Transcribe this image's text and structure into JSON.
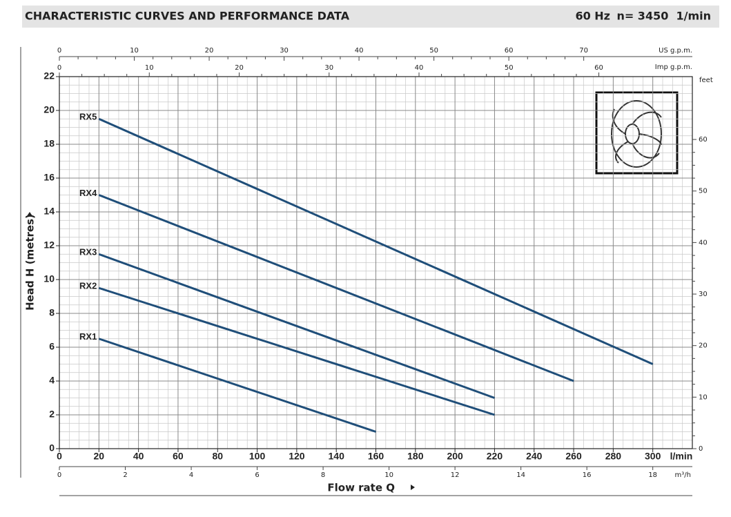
{
  "chart_data": {
    "type": "line",
    "title": "CHARACTERISTIC CURVES AND PERFORMANCE DATA",
    "frequency": "60 Hz",
    "speed": "n= 3450  1/min",
    "xlabel": "Flow rate Q",
    "xunit": "l/min",
    "ylabel": "Head H (metres)",
    "color": "#1f4e79",
    "grid": true,
    "xlim": [
      0,
      320
    ],
    "xticks": [
      0,
      20,
      40,
      60,
      80,
      100,
      120,
      140,
      160,
      180,
      200,
      220,
      240,
      260,
      280,
      300
    ],
    "ylim": [
      0,
      22
    ],
    "yticks": [
      0,
      2,
      4,
      6,
      8,
      10,
      12,
      14,
      16,
      18,
      20,
      22
    ],
    "series": [
      {
        "name": "RX1",
        "x": [
          20,
          160
        ],
        "values": [
          6.5,
          1
        ]
      },
      {
        "name": "RX2",
        "x": [
          20,
          220
        ],
        "values": [
          9.5,
          2
        ]
      },
      {
        "name": "RX3",
        "x": [
          20,
          220
        ],
        "values": [
          11.5,
          3
        ]
      },
      {
        "name": "RX4",
        "x": [
          20,
          260
        ],
        "values": [
          15,
          4
        ]
      },
      {
        "name": "RX5",
        "x": [
          20,
          300
        ],
        "values": [
          19.5,
          5
        ]
      }
    ],
    "x2": {
      "label": "m³/h",
      "lim": [
        0,
        19.2
      ],
      "ticks": [
        0,
        2,
        4,
        6,
        8,
        10,
        12,
        14,
        16,
        18
      ]
    },
    "x3": {
      "label": "US g.p.m.",
      "lim": [
        0,
        84.5
      ],
      "ticks": [
        0,
        10,
        20,
        30,
        40,
        50,
        60,
        70
      ]
    },
    "x4": {
      "label": "Imp g.p.m.",
      "lim": [
        0,
        70.4
      ],
      "ticks": [
        0,
        10,
        20,
        30,
        40,
        50,
        60
      ]
    },
    "y2label": "feet",
    "y2lim": [
      0,
      72.2
    ],
    "y2ticks": [
      0,
      10,
      20,
      30,
      40,
      50,
      60
    ]
  }
}
